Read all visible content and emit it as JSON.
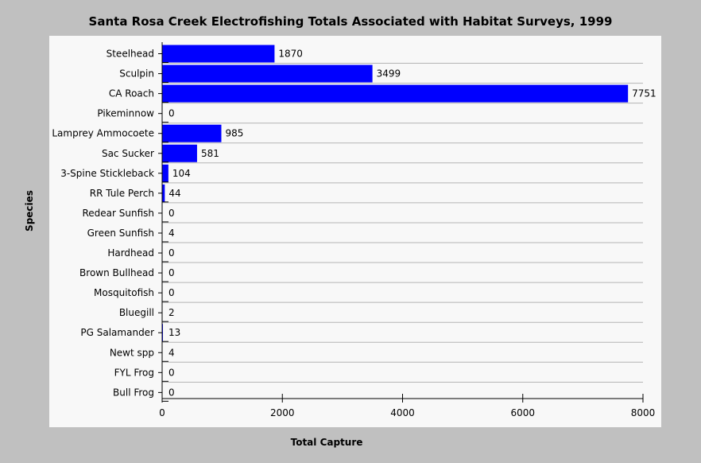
{
  "chart_data": {
    "type": "bar",
    "orientation": "horizontal",
    "title": "Santa Rosa Creek Electrofishing Totals Associated with Habitat Surveys, 1999",
    "xlabel": "Total Capture",
    "ylabel": "Species",
    "categories": [
      "Steelhead",
      "Sculpin",
      "CA Roach",
      "Pikeminnow",
      "Lamprey Ammocoete",
      "Sac Sucker",
      "3-Spine Stickleback",
      "RR Tule Perch",
      "Redear Sunfish",
      "Green Sunfish",
      "Hardhead",
      "Brown Bullhead",
      "Mosquitofish",
      "Bluegill",
      "PG Salamander",
      "Newt spp",
      "FYL Frog",
      "Bull Frog"
    ],
    "values": [
      1870,
      3499,
      7751,
      0,
      985,
      581,
      104,
      44,
      0,
      4,
      0,
      0,
      0,
      2,
      13,
      4,
      0,
      0
    ],
    "data_labels": [
      "1870",
      "3499",
      "7751",
      "0",
      "985",
      "581",
      "104",
      "44",
      "0",
      "4",
      "0",
      "0",
      "0",
      "2",
      "13",
      "4",
      "0",
      "0"
    ],
    "xlim": [
      0,
      8000
    ],
    "xticks": [
      0,
      2000,
      4000,
      6000,
      8000
    ],
    "xtick_labels": [
      "0",
      "2000",
      "4000",
      "6000",
      "8000"
    ],
    "grid": "horizontal lines between categories",
    "bar_color": "#0000ff",
    "legend": "none"
  },
  "colors": {
    "background": "#c0c0c0",
    "plot_background": "#f8f8f8",
    "bar": "#0000ff",
    "grid": "#b4b4b4"
  }
}
